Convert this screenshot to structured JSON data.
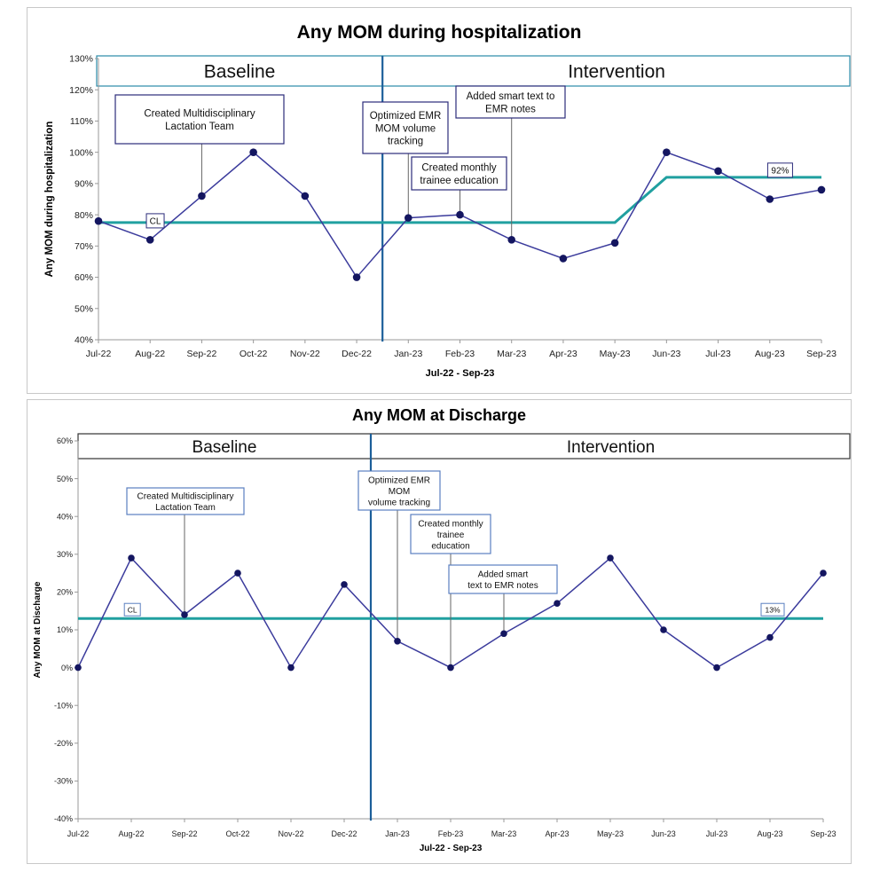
{
  "colors": {
    "series": "#3b3b9c",
    "center_line": "#20a0a0",
    "divider": "#1c5f9a",
    "box_border_top": "#2a8aa8",
    "box_border_bottom": "#333333",
    "annotation_border": "#2b2b7a",
    "annotation_border_bottom": "#5a7fc0"
  },
  "chart_data": [
    {
      "type": "line",
      "title": "Any MOM during hospitalization",
      "xlabel": "Jul-22 - Sep-23",
      "ylabel": "Any MOM during hospitalization",
      "categories": [
        "Jul-22",
        "Aug-22",
        "Sep-22",
        "Oct-22",
        "Nov-22",
        "Dec-22",
        "Jan-23",
        "Feb-23",
        "Mar-23",
        "Apr-23",
        "May-23",
        "Jun-23",
        "Jul-23",
        "Aug-23",
        "Sep-23"
      ],
      "y_ticks": [
        "40%",
        "50%",
        "60%",
        "70%",
        "80%",
        "90%",
        "100%",
        "110%",
        "120%",
        "130%"
      ],
      "ylim": [
        40,
        130
      ],
      "grid": false,
      "series": [
        {
          "values": [
            78,
            72,
            86,
            100,
            86,
            60,
            79,
            80,
            72,
            66,
            71,
            100,
            94,
            85,
            88
          ]
        }
      ],
      "center_line": {
        "points": [
          [
            0,
            77.5
          ],
          [
            10,
            77.5
          ],
          [
            11,
            92
          ],
          [
            14,
            92
          ]
        ],
        "labels": [
          "CL",
          "92%"
        ]
      },
      "phases": [
        {
          "label": "Baseline"
        },
        {
          "label": "Intervention"
        }
      ],
      "phase_divider_between": [
        5,
        6
      ],
      "annotations": [
        {
          "text": [
            "Created Multidisciplinary",
            "Lactation Team"
          ],
          "points_to": 2
        },
        {
          "text": [
            "Optimized EMR",
            "MOM volume",
            "tracking"
          ],
          "points_to": 6
        },
        {
          "text": [
            "Created monthly",
            "trainee education"
          ],
          "points_to": 7
        },
        {
          "text": [
            "Added smart text to",
            "EMR notes"
          ],
          "points_to": 8
        }
      ]
    },
    {
      "type": "line",
      "title": "Any MOM at Discharge",
      "xlabel": "Jul-22 - Sep-23",
      "ylabel": "Any MOM at Discharge",
      "categories": [
        "Jul-22",
        "Aug-22",
        "Sep-22",
        "Oct-22",
        "Nov-22",
        "Dec-22",
        "Jan-23",
        "Feb-23",
        "Mar-23",
        "Apr-23",
        "May-23",
        "Jun-23",
        "Jul-23",
        "Aug-23",
        "Sep-23"
      ],
      "y_ticks": [
        "-40%",
        "-30%",
        "-20%",
        "-10%",
        "0%",
        "10%",
        "20%",
        "30%",
        "40%",
        "50%",
        "60%"
      ],
      "ylim": [
        -40,
        60
      ],
      "grid": false,
      "series": [
        {
          "values": [
            0,
            29,
            14,
            25,
            0,
            22,
            7,
            0,
            9,
            17,
            29,
            10,
            0,
            8,
            25
          ]
        }
      ],
      "center_line": {
        "points": [
          [
            0,
            13
          ],
          [
            14,
            13
          ]
        ],
        "labels": [
          "CL",
          "13%"
        ]
      },
      "phases": [
        {
          "label": "Baseline"
        },
        {
          "label": "Intervention"
        }
      ],
      "phase_divider_between": [
        5,
        6
      ],
      "annotations": [
        {
          "text": [
            "Created Multidisciplinary",
            "Lactation Team"
          ],
          "points_to": 2
        },
        {
          "text": [
            "Optimized  EMR",
            "MOM",
            "volume tracking"
          ],
          "points_to": 6
        },
        {
          "text": [
            "Created monthly",
            "trainee",
            "education"
          ],
          "points_to": 7
        },
        {
          "text": [
            "Added smart",
            "text to EMR notes"
          ],
          "points_to": 8
        }
      ]
    }
  ]
}
